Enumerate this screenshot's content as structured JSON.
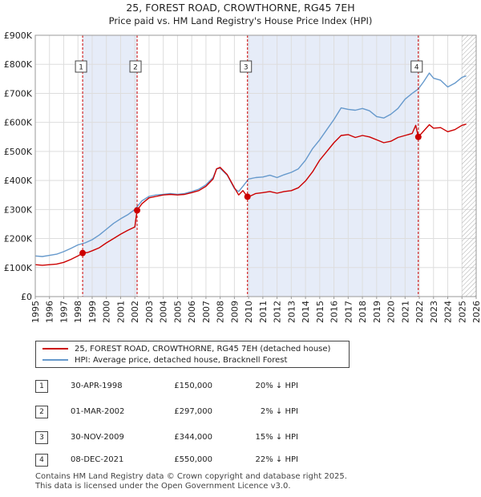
{
  "title": {
    "line1": "25, FOREST ROAD, CROWTHORNE, RG45 7EH",
    "line2": "Price paid vs. HM Land Registry's House Price Index (HPI)"
  },
  "chart_data": {
    "type": "line",
    "title": "25, FOREST ROAD, CROWTHORNE, RG45 7EH — Price paid vs. HM Land Registry's House Price Index (HPI)",
    "xlabel": "",
    "ylabel": "",
    "xlim": [
      1995,
      2026
    ],
    "ylim": [
      0,
      900000
    ],
    "x_ticks": [
      "1995",
      "1996",
      "1997",
      "1998",
      "1999",
      "2000",
      "2001",
      "2002",
      "2003",
      "2004",
      "2005",
      "2006",
      "2007",
      "2008",
      "2009",
      "2010",
      "2011",
      "2012",
      "2013",
      "2014",
      "2015",
      "2016",
      "2017",
      "2018",
      "2019",
      "2020",
      "2021",
      "2022",
      "2023",
      "2024",
      "2025",
      "2026"
    ],
    "y_ticks": [
      {
        "value": 0,
        "label": "£0"
      },
      {
        "value": 100000,
        "label": "£100K"
      },
      {
        "value": 200000,
        "label": "£200K"
      },
      {
        "value": 300000,
        "label": "£300K"
      },
      {
        "value": 400000,
        "label": "£400K"
      },
      {
        "value": 500000,
        "label": "£500K"
      },
      {
        "value": 600000,
        "label": "£600K"
      },
      {
        "value": 700000,
        "label": "£700K"
      },
      {
        "value": 800000,
        "label": "£800K"
      },
      {
        "value": 900000,
        "label": "£900K"
      }
    ],
    "grid": true,
    "legend_position": "bottom",
    "shaded_periods": [
      [
        1998.33,
        2002.17
      ],
      [
        2009.92,
        2021.93
      ]
    ],
    "future_hatch_from": 2025.0,
    "series": [
      {
        "name": "25, FOREST ROAD, CROWTHORNE, RG45 7EH (detached house)",
        "color": "#cc0000",
        "points": [
          [
            1995.0,
            110000
          ],
          [
            1995.5,
            108000
          ],
          [
            1996.0,
            110000
          ],
          [
            1996.5,
            112000
          ],
          [
            1997.0,
            118000
          ],
          [
            1997.5,
            128000
          ],
          [
            1998.0,
            140000
          ],
          [
            1998.33,
            150000
          ],
          [
            1998.7,
            152000
          ],
          [
            1999.0,
            158000
          ],
          [
            1999.5,
            168000
          ],
          [
            2000.0,
            185000
          ],
          [
            2000.5,
            200000
          ],
          [
            2001.0,
            215000
          ],
          [
            2001.5,
            228000
          ],
          [
            2002.0,
            240000
          ],
          [
            2002.16,
            297000
          ],
          [
            2002.5,
            320000
          ],
          [
            2003.0,
            340000
          ],
          [
            2003.5,
            345000
          ],
          [
            2004.0,
            350000
          ],
          [
            2004.5,
            352000
          ],
          [
            2005.0,
            350000
          ],
          [
            2005.5,
            352000
          ],
          [
            2006.0,
            358000
          ],
          [
            2006.5,
            365000
          ],
          [
            2007.0,
            380000
          ],
          [
            2007.5,
            405000
          ],
          [
            2007.75,
            440000
          ],
          [
            2008.0,
            445000
          ],
          [
            2008.5,
            420000
          ],
          [
            2009.0,
            375000
          ],
          [
            2009.3,
            350000
          ],
          [
            2009.6,
            365000
          ],
          [
            2009.92,
            344000
          ],
          [
            2010.2,
            348000
          ],
          [
            2010.5,
            355000
          ],
          [
            2011.0,
            358000
          ],
          [
            2011.5,
            362000
          ],
          [
            2012.0,
            356000
          ],
          [
            2012.5,
            362000
          ],
          [
            2013.0,
            365000
          ],
          [
            2013.5,
            375000
          ],
          [
            2014.0,
            398000
          ],
          [
            2014.5,
            430000
          ],
          [
            2015.0,
            470000
          ],
          [
            2015.5,
            500000
          ],
          [
            2016.0,
            530000
          ],
          [
            2016.5,
            555000
          ],
          [
            2017.0,
            558000
          ],
          [
            2017.5,
            548000
          ],
          [
            2018.0,
            555000
          ],
          [
            2018.5,
            550000
          ],
          [
            2019.0,
            540000
          ],
          [
            2019.5,
            530000
          ],
          [
            2020.0,
            535000
          ],
          [
            2020.5,
            548000
          ],
          [
            2021.0,
            555000
          ],
          [
            2021.5,
            562000
          ],
          [
            2021.75,
            590000
          ],
          [
            2021.93,
            550000
          ],
          [
            2022.3,
            570000
          ],
          [
            2022.7,
            592000
          ],
          [
            2023.0,
            580000
          ],
          [
            2023.5,
            582000
          ],
          [
            2024.0,
            568000
          ],
          [
            2024.5,
            575000
          ],
          [
            2025.0,
            590000
          ],
          [
            2025.3,
            594000
          ]
        ]
      },
      {
        "name": "HPI: Average price, detached house, Bracknell Forest",
        "color": "#6699cc",
        "points": [
          [
            1995.0,
            140000
          ],
          [
            1995.5,
            138000
          ],
          [
            1996.0,
            142000
          ],
          [
            1996.5,
            146000
          ],
          [
            1997.0,
            155000
          ],
          [
            1997.5,
            166000
          ],
          [
            1998.0,
            178000
          ],
          [
            1998.5,
            185000
          ],
          [
            1999.0,
            196000
          ],
          [
            1999.5,
            212000
          ],
          [
            2000.0,
            232000
          ],
          [
            2000.5,
            252000
          ],
          [
            2001.0,
            268000
          ],
          [
            2001.5,
            282000
          ],
          [
            2002.0,
            300000
          ],
          [
            2002.5,
            330000
          ],
          [
            2003.0,
            345000
          ],
          [
            2003.5,
            350000
          ],
          [
            2004.0,
            352000
          ],
          [
            2004.5,
            355000
          ],
          [
            2005.0,
            352000
          ],
          [
            2005.5,
            355000
          ],
          [
            2006.0,
            362000
          ],
          [
            2006.5,
            370000
          ],
          [
            2007.0,
            385000
          ],
          [
            2007.5,
            410000
          ],
          [
            2007.75,
            440000
          ],
          [
            2008.0,
            442000
          ],
          [
            2008.5,
            418000
          ],
          [
            2009.0,
            372000
          ],
          [
            2009.3,
            362000
          ],
          [
            2009.6,
            380000
          ],
          [
            2010.0,
            405000
          ],
          [
            2010.5,
            410000
          ],
          [
            2011.0,
            412000
          ],
          [
            2011.5,
            418000
          ],
          [
            2012.0,
            410000
          ],
          [
            2012.5,
            420000
          ],
          [
            2013.0,
            428000
          ],
          [
            2013.5,
            440000
          ],
          [
            2014.0,
            470000
          ],
          [
            2014.5,
            510000
          ],
          [
            2015.0,
            540000
          ],
          [
            2015.5,
            575000
          ],
          [
            2016.0,
            610000
          ],
          [
            2016.5,
            650000
          ],
          [
            2017.0,
            645000
          ],
          [
            2017.5,
            642000
          ],
          [
            2018.0,
            648000
          ],
          [
            2018.5,
            640000
          ],
          [
            2019.0,
            620000
          ],
          [
            2019.5,
            615000
          ],
          [
            2020.0,
            628000
          ],
          [
            2020.5,
            648000
          ],
          [
            2021.0,
            680000
          ],
          [
            2021.5,
            700000
          ],
          [
            2021.93,
            715000
          ],
          [
            2022.3,
            740000
          ],
          [
            2022.7,
            770000
          ],
          [
            2023.0,
            752000
          ],
          [
            2023.5,
            745000
          ],
          [
            2024.0,
            722000
          ],
          [
            2024.5,
            735000
          ],
          [
            2025.0,
            755000
          ],
          [
            2025.3,
            760000
          ]
        ]
      }
    ],
    "sales": [
      {
        "label": "1",
        "x": 1998.33,
        "price": 150000
      },
      {
        "label": "2",
        "x": 2002.16,
        "price": 297000
      },
      {
        "label": "3",
        "x": 2009.92,
        "price": 344000
      },
      {
        "label": "4",
        "x": 2021.93,
        "price": 550000
      }
    ]
  },
  "legend": {
    "items": [
      {
        "label": "25, FOREST ROAD, CROWTHORNE, RG45 7EH (detached house)",
        "color": "#cc0000"
      },
      {
        "label": "HPI: Average price, detached house, Bracknell Forest",
        "color": "#6699cc"
      }
    ]
  },
  "transactions": [
    {
      "num": "1",
      "date": "30-APR-1998",
      "price": "£150,000",
      "hpi": "20% ↓ HPI"
    },
    {
      "num": "2",
      "date": "01-MAR-2002",
      "price": "£297,000",
      "hpi": "2% ↓ HPI"
    },
    {
      "num": "3",
      "date": "30-NOV-2009",
      "price": "£344,000",
      "hpi": "15% ↓ HPI"
    },
    {
      "num": "4",
      "date": "08-DEC-2021",
      "price": "£550,000",
      "hpi": "22% ↓ HPI"
    }
  ],
  "footer": {
    "line1": "Contains HM Land Registry data © Crown copyright and database right 2025.",
    "line2": "This data is licensed under the Open Government Licence v3.0."
  }
}
